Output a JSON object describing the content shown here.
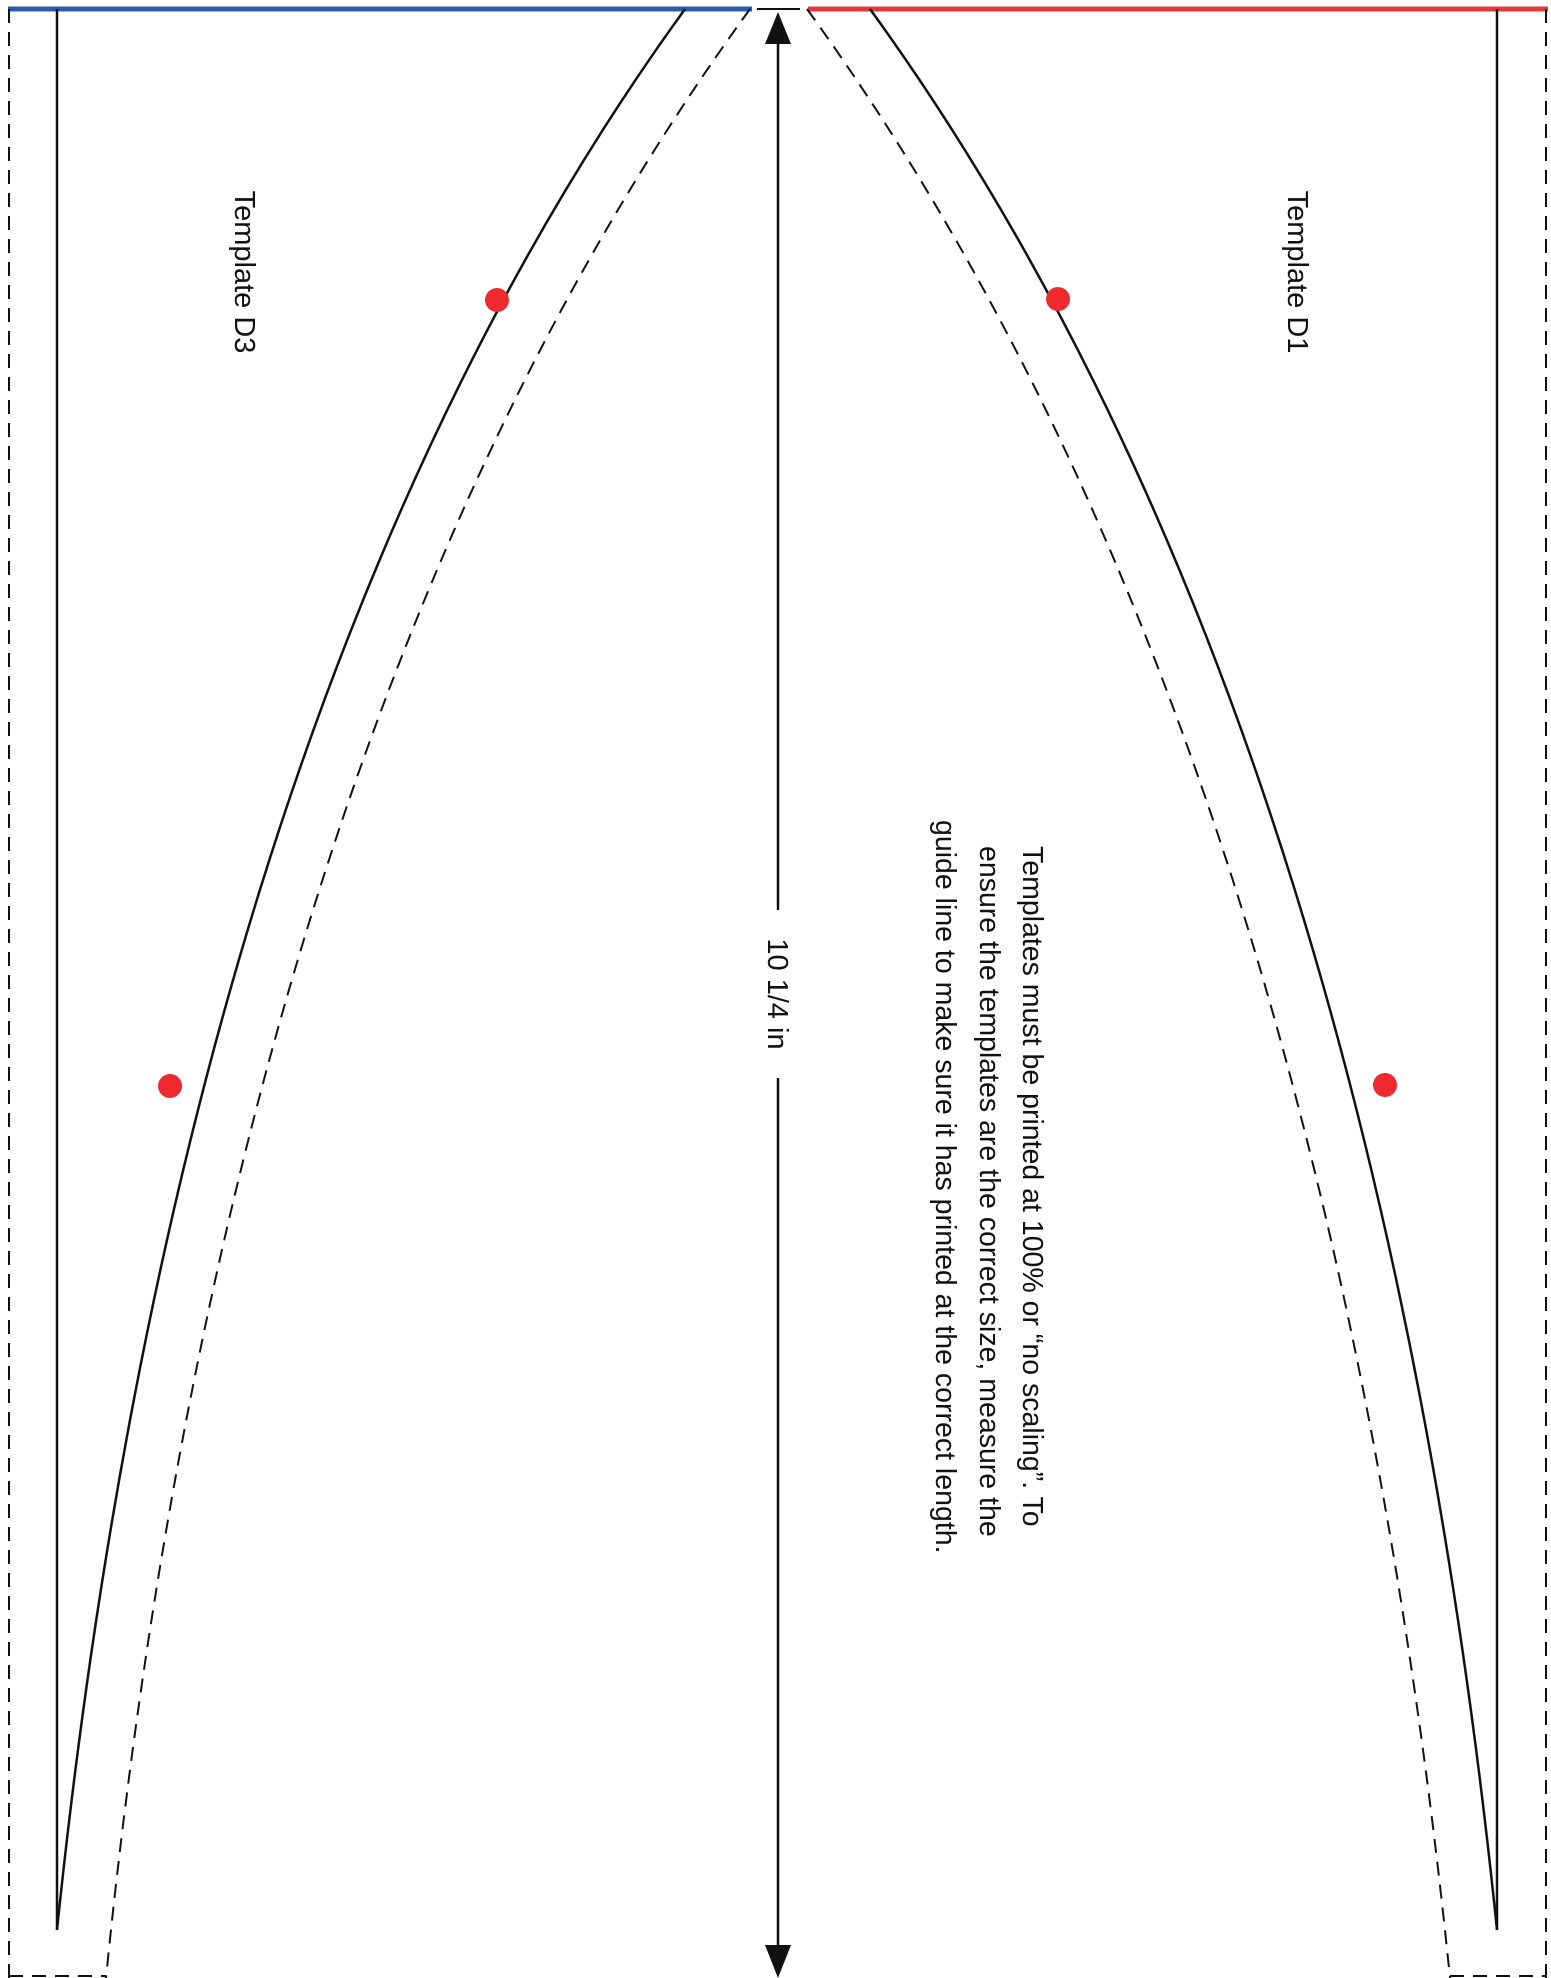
{
  "templates": {
    "left": {
      "label": "Template D3",
      "edge_color": "#2a5cac"
    },
    "right": {
      "label": "Template D1",
      "edge_color": "#e03a3a"
    }
  },
  "dimension": {
    "label": "10 1/4 in"
  },
  "instructions": {
    "lines": [
      "Templates must be printed at 100% or “no scaling”.  To",
      "ensure the templates are the correct size, measure the",
      "guide line to make sure it has printed at the correct length."
    ]
  },
  "colors": {
    "line": "#111111",
    "marker": "#ee2a2f",
    "background": "#ffffff"
  },
  "icons": {
    "markers": "red-dot-icon",
    "dimension_ends": "arrowhead-icon"
  }
}
